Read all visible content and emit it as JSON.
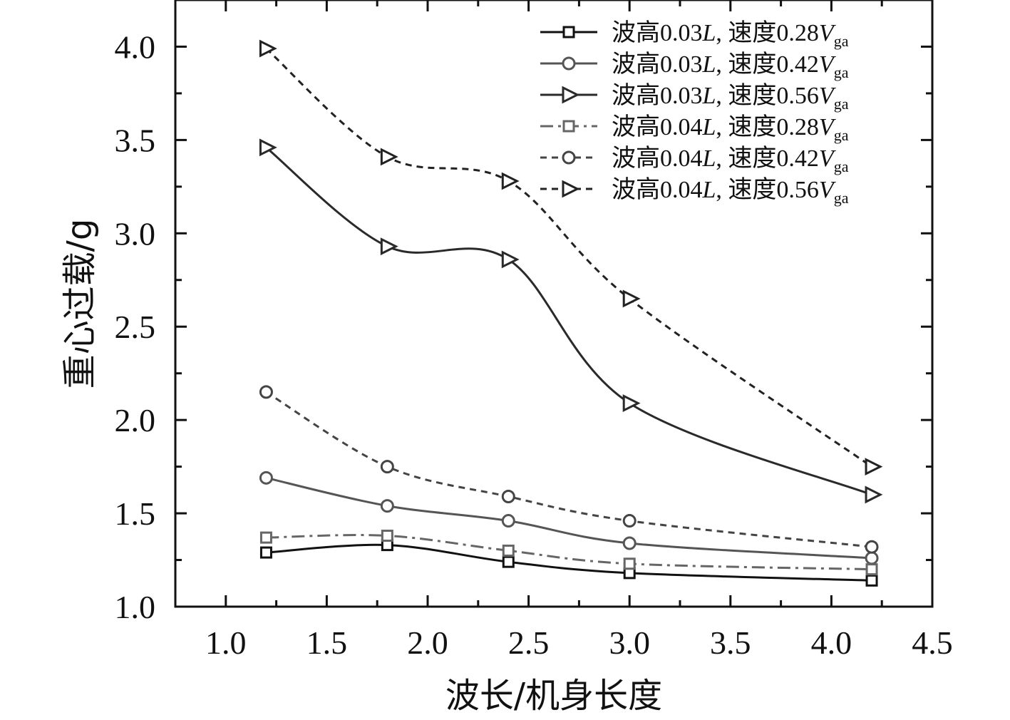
{
  "chart_data": {
    "type": "line",
    "xlabel": "波长/机身长度",
    "ylabel": "重心过载/g",
    "xlim": [
      0.75,
      4.5
    ],
    "ylim": [
      1.0,
      4.25
    ],
    "xticks": [
      "1.0",
      "1.5",
      "2.0",
      "2.5",
      "3.0",
      "3.5",
      "4.0",
      "4.5"
    ],
    "yticks": [
      "1.0",
      "1.5",
      "2.0",
      "2.5",
      "3.0",
      "3.5",
      "4.0"
    ],
    "x": [
      1.2,
      1.8,
      2.4,
      3.0,
      4.2
    ],
    "grid": false,
    "legend_position": "top-right",
    "series": [
      {
        "name": "波高0.03L, 速度0.28Vga",
        "prefix": "波高0.03",
        "italic": "L",
        "mid": ", 速度0.28",
        "var": "V",
        "sub": "ga",
        "values": [
          1.29,
          1.33,
          1.24,
          1.18,
          1.14
        ],
        "marker": "square",
        "dash": "solid",
        "color": "#111111"
      },
      {
        "name": "波高0.03L, 速度0.42Vga",
        "prefix": "波高0.03",
        "italic": "L",
        "mid": ", 速度0.42",
        "var": "V",
        "sub": "ga",
        "values": [
          1.69,
          1.54,
          1.46,
          1.34,
          1.26
        ],
        "marker": "circle",
        "dash": "solid",
        "color": "#555555"
      },
      {
        "name": "波高0.03L, 速度0.56Vga",
        "prefix": "波高0.03",
        "italic": "L",
        "mid": ", 速度0.56",
        "var": "V",
        "sub": "ga",
        "values": [
          3.46,
          2.93,
          2.86,
          2.09,
          1.6
        ],
        "marker": "triangle-right",
        "dash": "solid",
        "color": "#2a2a2a"
      },
      {
        "name": "波高0.04L, 速度0.28Vga",
        "prefix": "波高0.04",
        "italic": "L",
        "mid": ", 速度0.28",
        "var": "V",
        "sub": "ga",
        "values": [
          1.37,
          1.38,
          1.3,
          1.23,
          1.2
        ],
        "marker": "square",
        "dash": "dashdot",
        "color": "#666666"
      },
      {
        "name": "波高0.04L, 速度0.42Vga",
        "prefix": "波高0.04",
        "italic": "L",
        "mid": ", 速度0.42",
        "var": "V",
        "sub": "ga",
        "values": [
          2.15,
          1.75,
          1.59,
          1.46,
          1.32
        ],
        "marker": "circle",
        "dash": "dash",
        "color": "#444444"
      },
      {
        "name": "波高0.04L, 速度0.56Vga",
        "prefix": "波高0.04",
        "italic": "L",
        "mid": ", 速度0.56",
        "var": "V",
        "sub": "ga",
        "values": [
          3.99,
          3.41,
          3.28,
          2.65,
          1.75
        ],
        "marker": "triangle-right",
        "dash": "dash",
        "color": "#222222"
      }
    ]
  }
}
